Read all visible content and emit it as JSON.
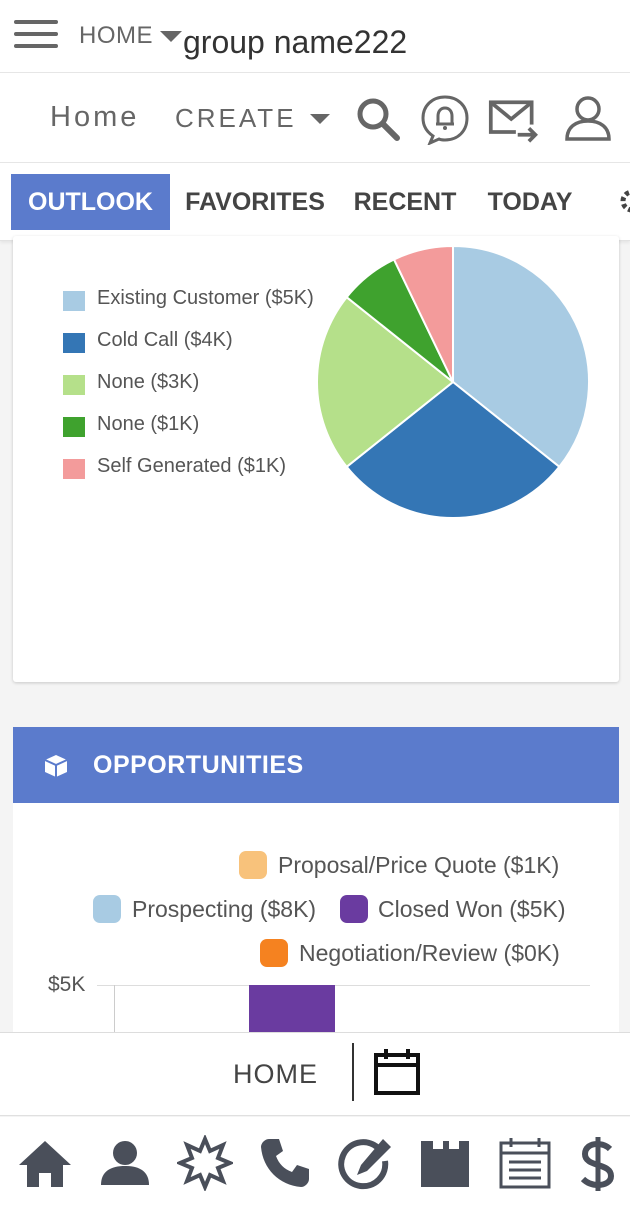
{
  "header": {
    "home_crumb": "HOME",
    "group_name": "group name222"
  },
  "nav": {
    "home_label": "Home",
    "create_label": "CREATE"
  },
  "tabs": [
    {
      "label": "OUTLOOK",
      "active": true
    },
    {
      "label": "FAVORITES",
      "active": false
    },
    {
      "label": "RECENT",
      "active": false
    },
    {
      "label": "TODAY",
      "active": false
    }
  ],
  "lead_source_card": {
    "legend": [
      {
        "label": "Existing Customer ($5K)",
        "color": "#a8cbe3"
      },
      {
        "label": "Cold Call ($4K)",
        "color": "#3476b5"
      },
      {
        "label": "None ($3K)",
        "color": "#b5e08a"
      },
      {
        "label": "None ($1K)",
        "color": "#3fa22e"
      },
      {
        "label": "Self Generated ($1K)",
        "color": "#f39b9b"
      }
    ]
  },
  "chart_data": [
    {
      "type": "pie",
      "categories": [
        "Existing Customer",
        "Cold Call",
        "None",
        "None",
        "Self Generated"
      ],
      "values": [
        5,
        4,
        3,
        1,
        1
      ],
      "unit": "$K",
      "colors": [
        "#a8cbe3",
        "#3476b5",
        "#b5e08a",
        "#3fa22e",
        "#f39b9b"
      ],
      "legend_position": "left"
    },
    {
      "type": "bar",
      "series": [
        {
          "name": "Proposal/Price Quote ($1K)",
          "color": "#f8c27b"
        },
        {
          "name": "Prospecting ($8K)",
          "color": "#a8cbe3"
        },
        {
          "name": "Closed Won ($5K)",
          "color": "#6a3ba0"
        },
        {
          "name": "Negotiation/Review ($0K)",
          "color": "#f58220"
        }
      ],
      "y_tick_labels": [
        "$5K"
      ],
      "legend_position": "top-right"
    }
  ],
  "opportunities": {
    "title": "OPPORTUNITIES",
    "legend": [
      {
        "label": "Proposal/Price Quote ($1K)",
        "color": "#f8c27b"
      },
      {
        "label": "Prospecting ($8K)",
        "color": "#a8cbe3"
      },
      {
        "label": "Closed Won ($5K)",
        "color": "#6a3ba0"
      },
      {
        "label": "Negotiation/Review ($0K)",
        "color": "#f58220"
      }
    ],
    "y_tick": "$5K",
    "visible_bar_color": "#6a3ba0"
  },
  "bottom": {
    "home_label": "HOME",
    "icons": [
      "home-icon",
      "person-icon",
      "badge-icon",
      "phone-icon",
      "edit-icon",
      "folder-icon",
      "calendar-list-icon",
      "dollar-icon"
    ]
  },
  "colors": {
    "accent": "#5b7bcc"
  }
}
